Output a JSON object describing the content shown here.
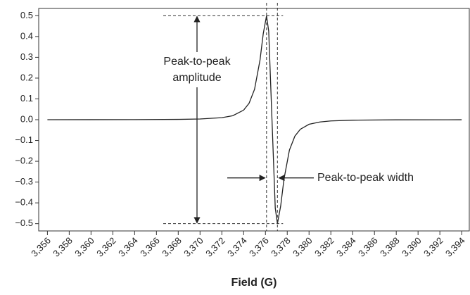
{
  "chart_data": {
    "type": "line",
    "x_label": "Field (G)",
    "xlim": [
      3355.2,
      3394.7
    ],
    "ylim": [
      -0.535,
      0.535
    ],
    "xticks": [
      {
        "value": 3356,
        "label": "3,356"
      },
      {
        "value": 3358,
        "label": "3,358"
      },
      {
        "value": 3360,
        "label": "3,360"
      },
      {
        "value": 3362,
        "label": "3,362"
      },
      {
        "value": 3364,
        "label": "3,364"
      },
      {
        "value": 3366,
        "label": "3,366"
      },
      {
        "value": 3368,
        "label": "3,368"
      },
      {
        "value": 3370,
        "label": "3,370"
      },
      {
        "value": 3372,
        "label": "3,372"
      },
      {
        "value": 3374,
        "label": "3,374"
      },
      {
        "value": 3376,
        "label": "3,376"
      },
      {
        "value": 3378,
        "label": "3,378"
      },
      {
        "value": 3380,
        "label": "3,380"
      },
      {
        "value": 3382,
        "label": "3,382"
      },
      {
        "value": 3384,
        "label": "3,384"
      },
      {
        "value": 3386,
        "label": "3,386"
      },
      {
        "value": 3388,
        "label": "3,388"
      },
      {
        "value": 3390,
        "label": "3,390"
      },
      {
        "value": 3392,
        "label": "3,392"
      },
      {
        "value": 3394,
        "label": "3,394"
      }
    ],
    "yticks": [
      0.5,
      0.4,
      0.3,
      0.2,
      0.1,
      {
        "value": 0,
        "label": "0.0"
      },
      {
        "value": -0.1,
        "label": "−0.1"
      },
      {
        "value": -0.2,
        "label": "−0.2"
      },
      {
        "value": -0.3,
        "label": "−0.3"
      },
      {
        "value": -0.4,
        "label": "−0.4"
      },
      {
        "value": -0.5,
        "label": "−0.5"
      }
    ],
    "x": [
      3356,
      3360,
      3364,
      3368,
      3370,
      3372,
      3373,
      3374,
      3374.5,
      3375,
      3375.5,
      3375.8,
      3376.1,
      3376.3,
      3376.6,
      3376.9,
      3377.1,
      3377.4,
      3377.7,
      3378.2,
      3378.7,
      3379.2,
      3380,
      3381,
      3382,
      3384,
      3388,
      3394
    ],
    "series": [
      {
        "color": "#222222",
        "values": [
          0.0001,
          0.0002,
          0.0005,
          0.0015,
          0.0034,
          0.0096,
          0.019,
          0.046,
          0.079,
          0.146,
          0.286,
          0.414,
          0.5,
          0.425,
          0,
          -0.425,
          -0.5,
          -0.414,
          -0.286,
          -0.146,
          -0.079,
          -0.046,
          -0.022,
          -0.011,
          -0.006,
          -0.0024,
          -0.0007,
          -0.0002
        ]
      }
    ],
    "amplitude_label": [
      "Peak-to-peak",
      "amplitude"
    ],
    "width_label": "Peak-to-peak width"
  }
}
